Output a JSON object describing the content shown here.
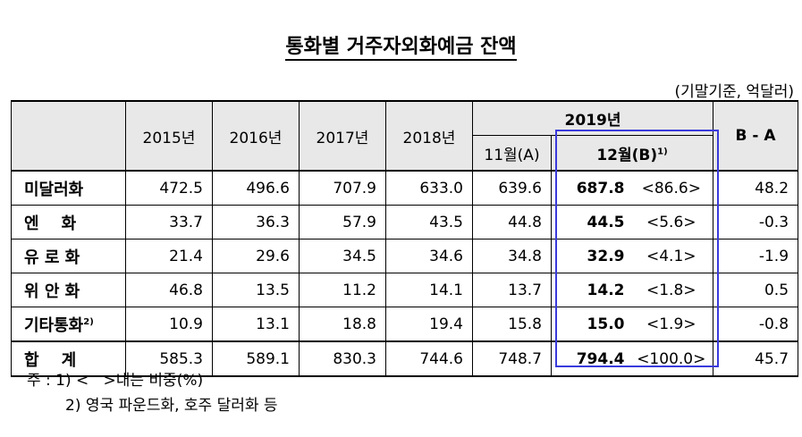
{
  "title": "통화별 거주자외화예금 잔액",
  "unit": "(기말기준, 억달러)",
  "header": {
    "years": [
      "2015년",
      "2016년",
      "2017년",
      "2018년"
    ],
    "year_2019": "2019년",
    "nov": "11월(A)",
    "dec": "12월(B)",
    "dec_sup": "1)",
    "diff": "B - A"
  },
  "rows": [
    {
      "label": "미달러화",
      "sup": "",
      "v2015": "472.5",
      "v2016": "496.6",
      "v2017": "707.9",
      "v2018": "633.0",
      "nov": "639.6",
      "dec": "687.8",
      "share": "<86.6>",
      "diff": "48.2"
    },
    {
      "label": "엔    화",
      "sup": "",
      "v2015": "33.7",
      "v2016": "36.3",
      "v2017": "57.9",
      "v2018": "43.5",
      "nov": "44.8",
      "dec": "44.5",
      "share": "<5.6>",
      "diff": "-0.3"
    },
    {
      "label": "유 로 화",
      "sup": "",
      "v2015": "21.4",
      "v2016": "29.6",
      "v2017": "34.5",
      "v2018": "34.6",
      "nov": "34.8",
      "dec": "32.9",
      "share": "<4.1>",
      "diff": "-1.9"
    },
    {
      "label": "위 안 화",
      "sup": "",
      "v2015": "46.8",
      "v2016": "13.5",
      "v2017": "11.2",
      "v2018": "14.1",
      "nov": "13.7",
      "dec": "14.2",
      "share": "<1.8>",
      "diff": "0.5"
    },
    {
      "label": "기타통화",
      "sup": "2)",
      "v2015": "10.9",
      "v2016": "13.1",
      "v2017": "18.8",
      "v2018": "19.4",
      "nov": "15.8",
      "dec": "15.0",
      "share": "<1.9>",
      "diff": "-0.8"
    }
  ],
  "total": {
    "label": "합    계",
    "v2015": "585.3",
    "v2016": "589.1",
    "v2017": "830.3",
    "v2018": "744.6",
    "nov": "748.7",
    "dec": "794.4",
    "share": "<100.0>",
    "diff": "45.7"
  },
  "notes": {
    "note1": "주 : 1) <   >내는 비중(%)",
    "note2": "2) 영국 파운드화, 호주 달러화 등"
  },
  "colors": {
    "highlight_box": "#3a3adc",
    "header_bg": "#e8e8e8"
  }
}
